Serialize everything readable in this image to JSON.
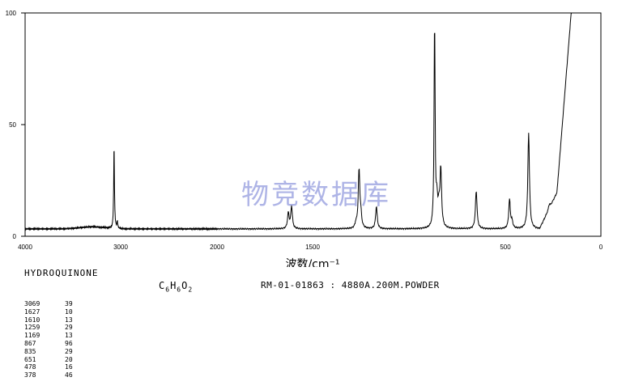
{
  "chart_data": {
    "type": "line",
    "x_ticks": [
      "4000",
      "3000",
      "2000",
      "1500",
      "500",
      "0"
    ],
    "y_ticks": [
      "0",
      "50",
      "100"
    ],
    "xlabel": "波数/cm⁻¹",
    "xlim": [
      4000,
      0
    ],
    "ylim": [
      0,
      100
    ],
    "watermark": "物竞数据库",
    "peaks": [
      {
        "x": 3069,
        "y": 39
      },
      {
        "x": 1627,
        "y": 10
      },
      {
        "x": 1610,
        "y": 13
      },
      {
        "x": 1259,
        "y": 29
      },
      {
        "x": 1169,
        "y": 13
      },
      {
        "x": 867,
        "y": 96
      },
      {
        "x": 835,
        "y": 29
      },
      {
        "x": 651,
        "y": 20
      },
      {
        "x": 478,
        "y": 16
      },
      {
        "x": 378,
        "y": 46
      }
    ]
  },
  "compound_name": "HYDROQUINONE",
  "formula": {
    "c": "C",
    "c_n": "6",
    "h": "H",
    "h_n": "6",
    "o": "O",
    "o_n": "2"
  },
  "meta_text": "RM-01-01863 : 4880A.200M.POWDER",
  "peak_table": [
    {
      "wn": "3069",
      "intensity": "39"
    },
    {
      "wn": "1627",
      "intensity": "10"
    },
    {
      "wn": "1610",
      "intensity": "13"
    },
    {
      "wn": "1259",
      "intensity": "29"
    },
    {
      "wn": "1169",
      "intensity": "13"
    },
    {
      "wn": "867",
      "intensity": "96"
    },
    {
      "wn": "835",
      "intensity": "29"
    },
    {
      "wn": "651",
      "intensity": "20"
    },
    {
      "wn": "478",
      "intensity": "16"
    },
    {
      "wn": "378",
      "intensity": "46"
    }
  ]
}
